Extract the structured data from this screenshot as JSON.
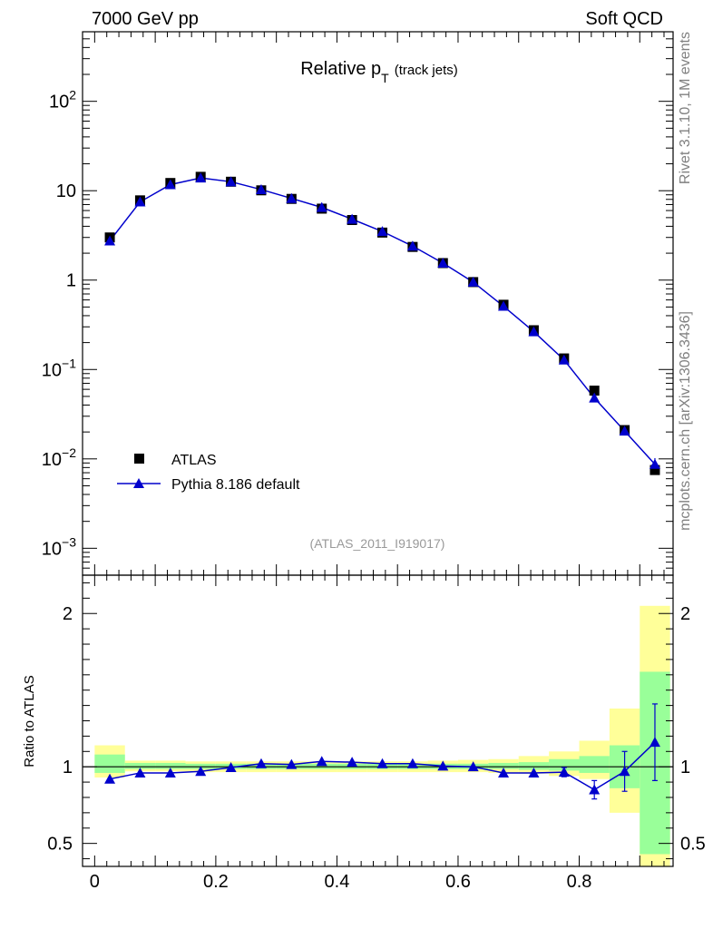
{
  "header": {
    "left": "7000 GeV pp",
    "right": "Soft QCD"
  },
  "side_labels": {
    "rivet": "Rivet 3.1.10,  1M events",
    "mcplots": "mcplots.cern.ch [arXiv:1306.3436]"
  },
  "chart_data": [
    {
      "type": "scatter",
      "title": "Relative p_T (track jets)",
      "title_main": "Relative p",
      "title_sub": "T",
      "title_suffix": "(track jets)",
      "watermark": "(ATLAS_2011_I919017)",
      "yscale": "log",
      "ylim": [
        0.0005,
        600
      ],
      "xlim": [
        -0.02,
        0.955
      ],
      "ytick_labels": [
        {
          "value": 0.001,
          "base": "10",
          "exp": "−3"
        },
        {
          "value": 0.01,
          "base": "10",
          "exp": "−2"
        },
        {
          "value": 0.1,
          "base": "10",
          "exp": "−1"
        },
        {
          "value": 1,
          "base": "1",
          "exp": ""
        },
        {
          "value": 10,
          "base": "10",
          "exp": ""
        },
        {
          "value": 100,
          "base": "10",
          "exp": "2"
        }
      ],
      "legend": {
        "placement": "bottom-left"
      },
      "series": [
        {
          "name": "ATLAS",
          "marker": "square",
          "color": "#000000",
          "x": [
            0.025,
            0.075,
            0.125,
            0.175,
            0.225,
            0.275,
            0.325,
            0.375,
            0.425,
            0.475,
            0.525,
            0.575,
            0.625,
            0.675,
            0.725,
            0.775,
            0.825,
            0.875,
            0.925
          ],
          "y": [
            3.0,
            7.8,
            12.2,
            14.3,
            12.6,
            10.1,
            8.1,
            6.3,
            4.7,
            3.4,
            2.35,
            1.55,
            0.95,
            0.53,
            0.275,
            0.133,
            0.058,
            0.021,
            0.0075
          ]
        },
        {
          "name": "Pythia 8.186 default",
          "marker": "triangle",
          "color": "#0000cc",
          "x": [
            0.025,
            0.075,
            0.125,
            0.175,
            0.225,
            0.275,
            0.325,
            0.375,
            0.425,
            0.475,
            0.525,
            0.575,
            0.625,
            0.675,
            0.725,
            0.775,
            0.825,
            0.875,
            0.925
          ],
          "y": [
            2.75,
            7.5,
            11.7,
            13.9,
            12.6,
            10.3,
            8.2,
            6.5,
            4.8,
            3.5,
            2.4,
            1.55,
            0.95,
            0.51,
            0.265,
            0.128,
            0.048,
            0.0205,
            0.0087
          ],
          "yerr_low": [
            0,
            0,
            0,
            0,
            0,
            0,
            0,
            0,
            0,
            0,
            0,
            0,
            0,
            0,
            0,
            0,
            0,
            0,
            0.0012
          ],
          "yerr_high": [
            0,
            0,
            0,
            0,
            0,
            0,
            0,
            0,
            0,
            0,
            0,
            0,
            0,
            0,
            0,
            0,
            0,
            0,
            0.0015
          ]
        }
      ]
    },
    {
      "type": "scatter",
      "ylabel": "Ratio to ATLAS",
      "ylim": [
        0.35,
        2.25
      ],
      "xlim": [
        -0.02,
        0.955
      ],
      "ytick_labels": [
        "0.5",
        "1",
        "2"
      ],
      "yticks": [
        0.5,
        1,
        2
      ],
      "xtick_labels": [
        "0",
        "0.2",
        "0.4",
        "0.6",
        "0.8"
      ],
      "xticks": [
        0,
        0.2,
        0.4,
        0.6,
        0.8
      ],
      "band_colors": {
        "inner": "#99ff99",
        "outer": "#ffff99"
      },
      "bands": {
        "edges": [
          0,
          0.05,
          0.1,
          0.15,
          0.2,
          0.25,
          0.3,
          0.35,
          0.4,
          0.45,
          0.5,
          0.55,
          0.6,
          0.65,
          0.7,
          0.75,
          0.8,
          0.85,
          0.9,
          0.95
        ],
        "inner_low": [
          0.96,
          0.985,
          0.985,
          0.985,
          0.985,
          0.985,
          0.985,
          0.985,
          0.985,
          0.985,
          0.985,
          0.985,
          0.985,
          0.985,
          0.98,
          0.975,
          0.96,
          0.86,
          0.43
        ],
        "inner_high": [
          1.08,
          1.025,
          1.025,
          1.02,
          1.02,
          1.02,
          1.02,
          1.02,
          1.02,
          1.02,
          1.02,
          1.02,
          1.02,
          1.025,
          1.03,
          1.05,
          1.07,
          1.14,
          1.62
        ],
        "outer_low": [
          0.93,
          0.97,
          0.97,
          0.965,
          0.965,
          0.965,
          0.965,
          0.965,
          0.965,
          0.965,
          0.965,
          0.965,
          0.965,
          0.96,
          0.955,
          0.94,
          0.92,
          0.7,
          0.35
        ],
        "outer_high": [
          1.14,
          1.04,
          1.04,
          1.035,
          1.035,
          1.035,
          1.035,
          1.035,
          1.035,
          1.035,
          1.035,
          1.04,
          1.045,
          1.05,
          1.07,
          1.1,
          1.17,
          1.38,
          2.05
        ]
      },
      "series": [
        {
          "name": "Pythia 8.186 default",
          "color": "#0000cc",
          "x": [
            0.025,
            0.075,
            0.125,
            0.175,
            0.225,
            0.275,
            0.325,
            0.375,
            0.425,
            0.475,
            0.525,
            0.575,
            0.625,
            0.675,
            0.725,
            0.775,
            0.825,
            0.875,
            0.925
          ],
          "y": [
            0.92,
            0.96,
            0.96,
            0.97,
            0.995,
            1.02,
            1.015,
            1.035,
            1.03,
            1.02,
            1.02,
            1.005,
            1.0,
            0.96,
            0.96,
            0.965,
            0.85,
            0.97,
            1.16
          ],
          "yerr": [
            0,
            0,
            0,
            0,
            0,
            0,
            0,
            0,
            0,
            0,
            0,
            0,
            0,
            0,
            0,
            0.03,
            0.06,
            0.13,
            0.25
          ]
        }
      ]
    }
  ]
}
